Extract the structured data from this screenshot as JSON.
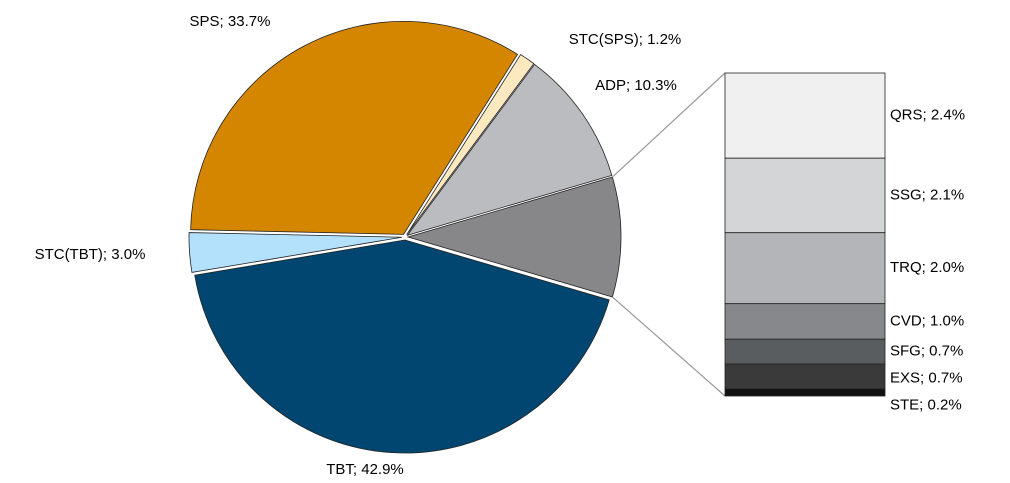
{
  "chart_data": {
    "type": "bar-of-pie",
    "labels": [
      "TBT; 42.9%",
      "STC(TBT); 3.0%",
      "SPS; 33.7%",
      "STC(SPS); 1.2%",
      "ADP; 10.3%"
    ],
    "values": [
      42.9,
      3.0,
      33.7,
      1.2,
      10.3
    ],
    "colors": [
      "#004670",
      "#b3e0fb",
      "#d48600",
      "#fde9c0",
      "#bbbcbf"
    ],
    "bar": {
      "labels": [
        "QRS; 2.4%",
        "SSG; 2.1%",
        "TRQ; 2.0%",
        "CVD; 1.0%",
        "SFG; 0.7%",
        "EXS; 0.7%",
        "STE; 0.2%"
      ],
      "values": [
        2.4,
        2.1,
        2.0,
        1.0,
        0.7,
        0.7,
        0.2
      ],
      "colors": [
        "#f0f0f0",
        "#d4d5d6",
        "#b4b5b8",
        "#87888b",
        "#5a5d60",
        "#3a3a3a",
        "#111111"
      ],
      "slice_color": "#87878a"
    }
  }
}
